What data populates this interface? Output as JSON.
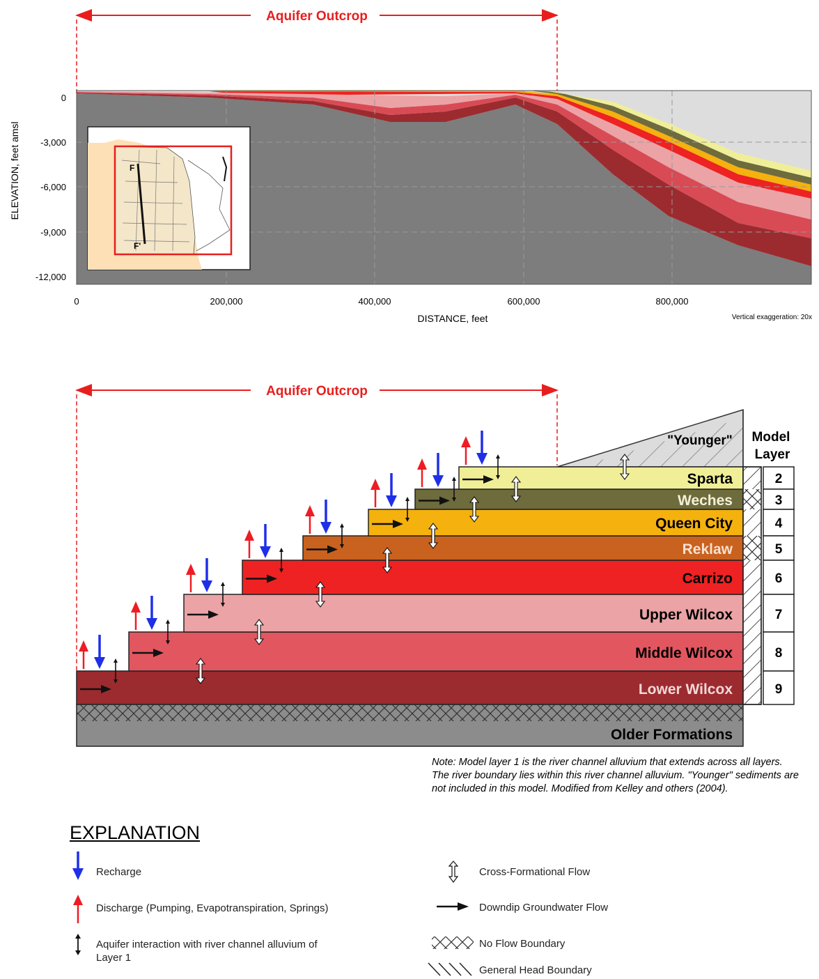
{
  "top_panel": {
    "outcrop_label": "Aquifer Outcrop",
    "ylabel": "ELEVATION, feet amsl",
    "xlabel": "DISTANCE, feet",
    "vertical_exaggeration": "Vertical exaggeration: 20x",
    "y_ticks": [
      "0",
      "-3,000",
      "-6,000",
      "-9,000",
      "-12,000"
    ],
    "x_ticks": [
      "0",
      "200,000",
      "400,000",
      "600,000",
      "800,000"
    ],
    "inset_labels": {
      "start": "F",
      "end": "F'"
    }
  },
  "bottom_panel": {
    "outcrop_label": "Aquifer Outcrop",
    "younger_label": "\"Younger\"",
    "model_layer_header": [
      "Model",
      "Layer"
    ],
    "older_formations": "Older Formations",
    "layers": [
      {
        "name": "Sparta",
        "model_layer": "2",
        "color": "#f0ef98"
      },
      {
        "name": "Weches",
        "model_layer": "3",
        "color": "#6e6b3c"
      },
      {
        "name": "Queen City",
        "model_layer": "4",
        "color": "#f5b10d"
      },
      {
        "name": "Reklaw",
        "model_layer": "5",
        "color": "#c9621f"
      },
      {
        "name": "Carrizo",
        "model_layer": "6",
        "color": "#ee2222"
      },
      {
        "name": "Upper Wilcox",
        "model_layer": "7",
        "color": "#eba3a6"
      },
      {
        "name": "Middle Wilcox",
        "model_layer": "8",
        "color": "#e25660"
      },
      {
        "name": "Lower Wilcox",
        "model_layer": "9",
        "color": "#9c2b2f"
      }
    ],
    "note": "Note: Model layer 1 is the river channel alluvium that extends across all layers. The river boundary lies within this river channel alluvium. \"Younger\" sediments are not included in this model. Modified from Kelley and others (2004)."
  },
  "explanation": {
    "title": "EXPLANATION",
    "items": [
      {
        "icon": "recharge-arrow-icon",
        "label": "Recharge",
        "color": "#1f2fe8"
      },
      {
        "icon": "discharge-arrow-icon",
        "label": "Discharge (Pumping, Evapotranspiration, Springs)",
        "color": "#ee1c24"
      },
      {
        "icon": "river-interaction-icon",
        "label": "Aquifer interaction with river channel alluvium of Layer 1"
      },
      {
        "icon": "cross-formational-flow-icon",
        "label": "Cross-Formational Flow"
      },
      {
        "icon": "downdip-flow-arrow-icon",
        "label": "Downdip Groundwater Flow"
      },
      {
        "icon": "no-flow-boundary-icon",
        "label": "No Flow Boundary"
      },
      {
        "icon": "general-head-boundary-icon",
        "label": "General Head Boundary"
      }
    ]
  }
}
